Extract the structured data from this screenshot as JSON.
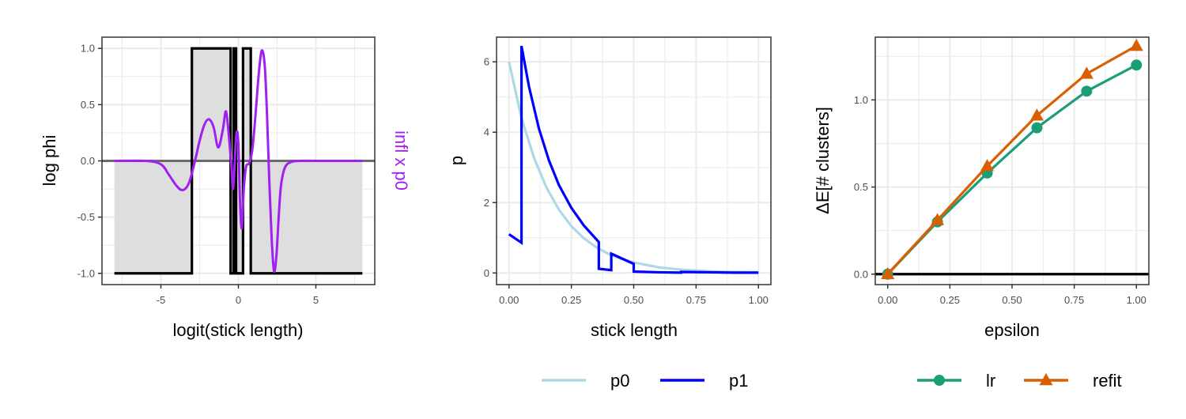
{
  "chart_data": [
    {
      "type": "line",
      "xlabel": "logit(stick length)",
      "ylabel": "log phi",
      "ylabel_right": "infl x p0",
      "xlim": [
        -8.8,
        8.8
      ],
      "ylim": [
        -1.1,
        1.1
      ],
      "x_ticks": [
        {
          "v": -5,
          "label": "-5"
        },
        {
          "v": 0,
          "label": "0"
        },
        {
          "v": 5,
          "label": "5"
        }
      ],
      "y_ticks": [
        {
          "v": -1,
          "label": "-1.0"
        },
        {
          "v": -0.5,
          "label": "-0.5"
        },
        {
          "v": 0,
          "label": "0.0"
        },
        {
          "v": 0.5,
          "label": "0.5"
        },
        {
          "v": 1,
          "label": "1.0"
        }
      ],
      "grid": true,
      "colors": {
        "step": "#000000",
        "fill": "#dedede",
        "influence": "#a020f0",
        "zero_line": "#6b6b6b"
      },
      "series": [
        {
          "x": [
            -8,
            -3,
            -3,
            -0.5,
            -0.5,
            -0.3,
            -0.3,
            -0.15,
            -0.15,
            0.3,
            0.3,
            0.8,
            0.8,
            2.2,
            2.2,
            8
          ],
          "values": [
            -1,
            -1,
            1,
            1,
            -1,
            -1,
            1,
            1,
            -1,
            -1,
            1,
            1,
            -1,
            -1,
            -1,
            -1
          ]
        },
        {
          "x": [
            -8,
            -6,
            -5,
            -4.5,
            -4.0,
            -3.6,
            -3.2,
            -2.8,
            -2.5,
            -2.2,
            -1.9,
            -1.6,
            -1.3,
            -1.0,
            -0.8,
            -0.6,
            -0.45,
            -0.35,
            -0.25,
            -0.12,
            0.0,
            0.1,
            0.22,
            0.35,
            0.5,
            0.7,
            0.9,
            1.1,
            1.3,
            1.5,
            1.7,
            1.85,
            2.0,
            2.15,
            2.3,
            2.45,
            2.6,
            2.75,
            3.0,
            3.4,
            4.0,
            5.0,
            8.0
          ],
          "values": [
            0,
            0,
            -0.03,
            -0.12,
            -0.22,
            -0.26,
            -0.2,
            0,
            0.18,
            0.32,
            0.37,
            0.3,
            0.12,
            0.28,
            0.44,
            0.2,
            -0.05,
            -0.25,
            -0.05,
            0.25,
            0.15,
            -0.35,
            -0.6,
            -0.25,
            -0.05,
            -0.02,
            0.1,
            0.4,
            0.75,
            0.98,
            0.85,
            0.4,
            -0.2,
            -0.7,
            -0.98,
            -0.85,
            -0.5,
            -0.22,
            -0.06,
            -0.01,
            0,
            0,
            0
          ]
        }
      ]
    },
    {
      "type": "line",
      "xlabel": "stick length",
      "ylabel": "p",
      "xlim": [
        -0.05,
        1.05
      ],
      "ylim": [
        -0.33,
        6.7
      ],
      "x_ticks": [
        {
          "v": 0,
          "label": "0.00"
        },
        {
          "v": 0.25,
          "label": "0.25"
        },
        {
          "v": 0.5,
          "label": "0.50"
        },
        {
          "v": 0.75,
          "label": "0.75"
        },
        {
          "v": 1,
          "label": "1.00"
        }
      ],
      "y_ticks": [
        {
          "v": 0,
          "label": "0"
        },
        {
          "v": 2,
          "label": "2"
        },
        {
          "v": 4,
          "label": "4"
        },
        {
          "v": 6,
          "label": "6"
        }
      ],
      "grid": true,
      "series": [
        {
          "name": "p0",
          "color": "#add8e6",
          "x": [
            0,
            0.05,
            0.1,
            0.15,
            0.2,
            0.25,
            0.3,
            0.35,
            0.4,
            0.45,
            0.5,
            0.6,
            0.7,
            0.8,
            0.9,
            1.0
          ],
          "values": [
            6.0,
            4.4,
            3.28,
            2.43,
            1.8,
            1.33,
            0.99,
            0.73,
            0.54,
            0.4,
            0.3,
            0.16,
            0.09,
            0.05,
            0.03,
            0.02
          ]
        },
        {
          "name": "p1",
          "color": "#0000ff",
          "x": [
            0,
            0.05,
            0.05,
            0.08,
            0.12,
            0.16,
            0.2,
            0.25,
            0.3,
            0.36,
            0.36,
            0.41,
            0.41,
            0.45,
            0.5,
            0.5,
            0.6,
            0.69,
            0.69,
            0.8,
            0.9,
            1.0
          ],
          "values": [
            1.1,
            0.86,
            6.45,
            5.3,
            4.1,
            3.2,
            2.5,
            1.85,
            1.35,
            0.88,
            0.12,
            0.08,
            0.55,
            0.42,
            0.26,
            0.04,
            0.02,
            0.01,
            0.03,
            0.02,
            0.01,
            0.01
          ]
        }
      ]
    },
    {
      "type": "line",
      "xlabel": "epsilon",
      "ylabel": "ΔE[# clusters]",
      "xlim": [
        -0.05,
        1.05
      ],
      "ylim": [
        -0.06,
        1.36
      ],
      "x_ticks": [
        {
          "v": 0,
          "label": "0.00"
        },
        {
          "v": 0.25,
          "label": "0.25"
        },
        {
          "v": 0.5,
          "label": "0.50"
        },
        {
          "v": 0.75,
          "label": "0.75"
        },
        {
          "v": 1,
          "label": "1.00"
        }
      ],
      "y_ticks": [
        {
          "v": 0,
          "label": "0.0"
        },
        {
          "v": 0.5,
          "label": "0.5"
        },
        {
          "v": 1,
          "label": "1.0"
        }
      ],
      "grid": true,
      "hline": 0,
      "series": [
        {
          "name": "lr",
          "color": "#1b9e77",
          "marker": "circle",
          "x": [
            0,
            0.2,
            0.4,
            0.6,
            0.8,
            1.0
          ],
          "values": [
            0,
            0.3,
            0.58,
            0.84,
            1.05,
            1.2
          ]
        },
        {
          "name": "refit",
          "color": "#d95f02",
          "marker": "triangle",
          "x": [
            0,
            0.2,
            0.4,
            0.6,
            0.8,
            1.0
          ],
          "values": [
            0,
            0.31,
            0.62,
            0.91,
            1.15,
            1.31
          ]
        }
      ]
    }
  ]
}
